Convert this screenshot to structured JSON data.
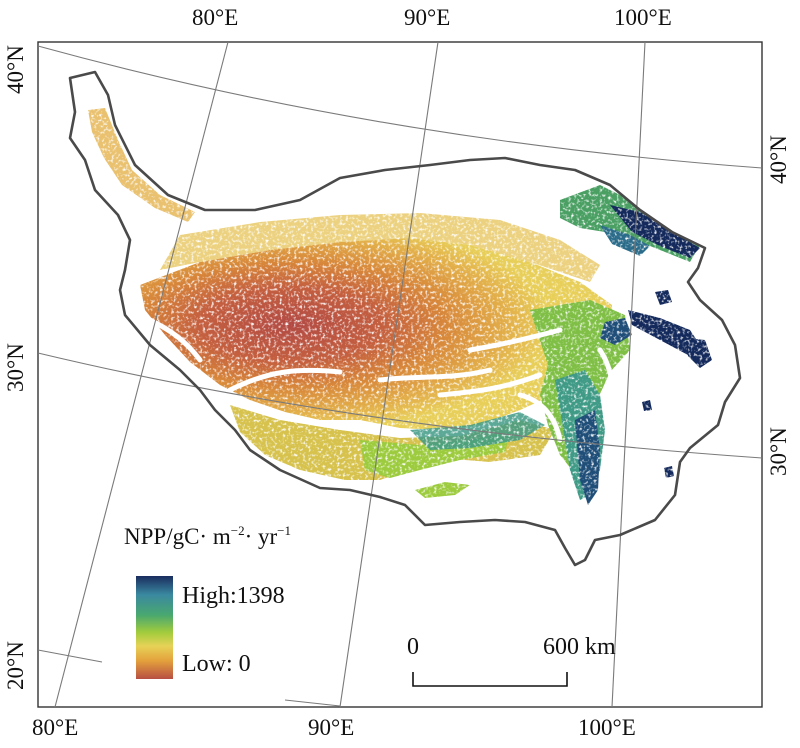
{
  "map": {
    "legend": {
      "title_main": "NPP/gC· m",
      "title_exp1": "−2",
      "title_mid": "· yr",
      "title_exp2": "−1",
      "high_label": "High:1398",
      "low_label": "Low: 0",
      "ramp_colors": [
        "#1a2c5e",
        "#3a88a0",
        "#49a86f",
        "#a3cc3c",
        "#e6d257",
        "#e4a23c",
        "#b74f43"
      ]
    },
    "scale_bar": {
      "start_label": "0",
      "end_label": "600 km"
    },
    "graticule_labels": {
      "top": [
        "80°E",
        "90°E",
        "100°E"
      ],
      "bottom": [
        "80°E",
        "90°E",
        "100°E"
      ],
      "left": [
        "40°N",
        "30°N",
        "20°N"
      ],
      "right": [
        "40°N",
        "30°N"
      ]
    },
    "colors": {
      "high": "#142a5c",
      "mid_high": "#3f9a86",
      "mid": "#9ccb3e",
      "mid_low": "#e3c24b",
      "low_mid": "#d8883a",
      "low": "#b24a44",
      "outline": "#4a4a4a",
      "graticule": "#7a7a7a"
    }
  }
}
